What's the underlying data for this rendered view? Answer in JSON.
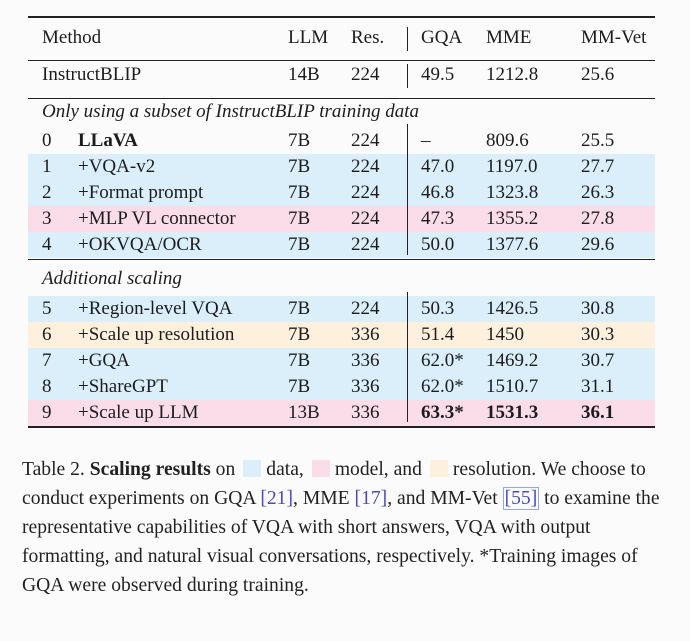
{
  "table": {
    "headers": {
      "method": "Method",
      "llm": "LLM",
      "res": "Res.",
      "gqa": "GQA",
      "mme": "MME",
      "mmvet": "MM-Vet"
    },
    "baseline": {
      "method": "InstructBLIP",
      "llm": "14B",
      "res": "224",
      "gqa": "49.5",
      "mme": "1212.8",
      "mmvet": "25.6"
    },
    "section1_title": "Only using a subset of InstructBLIP training data",
    "section1_rows": [
      {
        "idx": "0",
        "name": "LLaVA",
        "llm": "7B",
        "res": "224",
        "gqa": "–",
        "mme": "809.6",
        "mmvet": "25.5",
        "category": "none"
      },
      {
        "idx": "1",
        "name": "+VQA-v2",
        "llm": "7B",
        "res": "224",
        "gqa": "47.0",
        "mme": "1197.0",
        "mmvet": "27.7",
        "category": "data"
      },
      {
        "idx": "2",
        "name": "+Format prompt",
        "llm": "7B",
        "res": "224",
        "gqa": "46.8",
        "mme": "1323.8",
        "mmvet": "26.3",
        "category": "data"
      },
      {
        "idx": "3",
        "name": "+MLP VL connector",
        "llm": "7B",
        "res": "224",
        "gqa": "47.3",
        "mme": "1355.2",
        "mmvet": "27.8",
        "category": "model"
      },
      {
        "idx": "4",
        "name": "+OKVQA/OCR",
        "llm": "7B",
        "res": "224",
        "gqa": "50.0",
        "mme": "1377.6",
        "mmvet": "29.6",
        "category": "data"
      }
    ],
    "section2_title": "Additional scaling",
    "section2_rows": [
      {
        "idx": "5",
        "name": "+Region-level VQA",
        "llm": "7B",
        "res": "224",
        "gqa": "50.3",
        "mme": "1426.5",
        "mmvet": "30.8",
        "category": "data"
      },
      {
        "idx": "6",
        "name": "+Scale up resolution",
        "llm": "7B",
        "res": "336",
        "gqa": "51.4",
        "mme": "1450",
        "mmvet": "30.3",
        "category": "res"
      },
      {
        "idx": "7",
        "name": "+GQA",
        "llm": "7B",
        "res": "336",
        "gqa": "62.0*",
        "mme": "1469.2",
        "mmvet": "30.7",
        "category": "data"
      },
      {
        "idx": "8",
        "name": "+ShareGPT",
        "llm": "7B",
        "res": "336",
        "gqa": "62.0*",
        "mme": "1510.7",
        "mmvet": "31.1",
        "category": "data"
      },
      {
        "idx": "9",
        "name": "+Scale up LLM",
        "llm": "13B",
        "res": "336",
        "gqa": "63.3*",
        "mme": "1531.3",
        "mmvet": "36.1",
        "category": "model"
      }
    ]
  },
  "caption": {
    "label": "Table 2.",
    "title": "Scaling results",
    "on": "on",
    "legend_data": "data,",
    "legend_model": "model, and",
    "legend_res": "resolution.",
    "text1": "We choose to conduct experiments on GQA",
    "cite_gqa": "[21]",
    "text_mme": ", MME",
    "cite_mme": "[17]",
    "text_and": ", and",
    "text_mmvet": "MM-Vet",
    "cite_mmvet": "[55]",
    "text2": "to examine the representative capabilities of VQA with short answers, VQA with output formatting, and natural visual conversations, respectively.",
    "footnote": "*Training images of GQA were observed during training."
  },
  "colors": {
    "data": "#dbeffa",
    "model": "#fbdde9",
    "resolution": "#fdf1dd",
    "citation": "#4a4ab8"
  }
}
